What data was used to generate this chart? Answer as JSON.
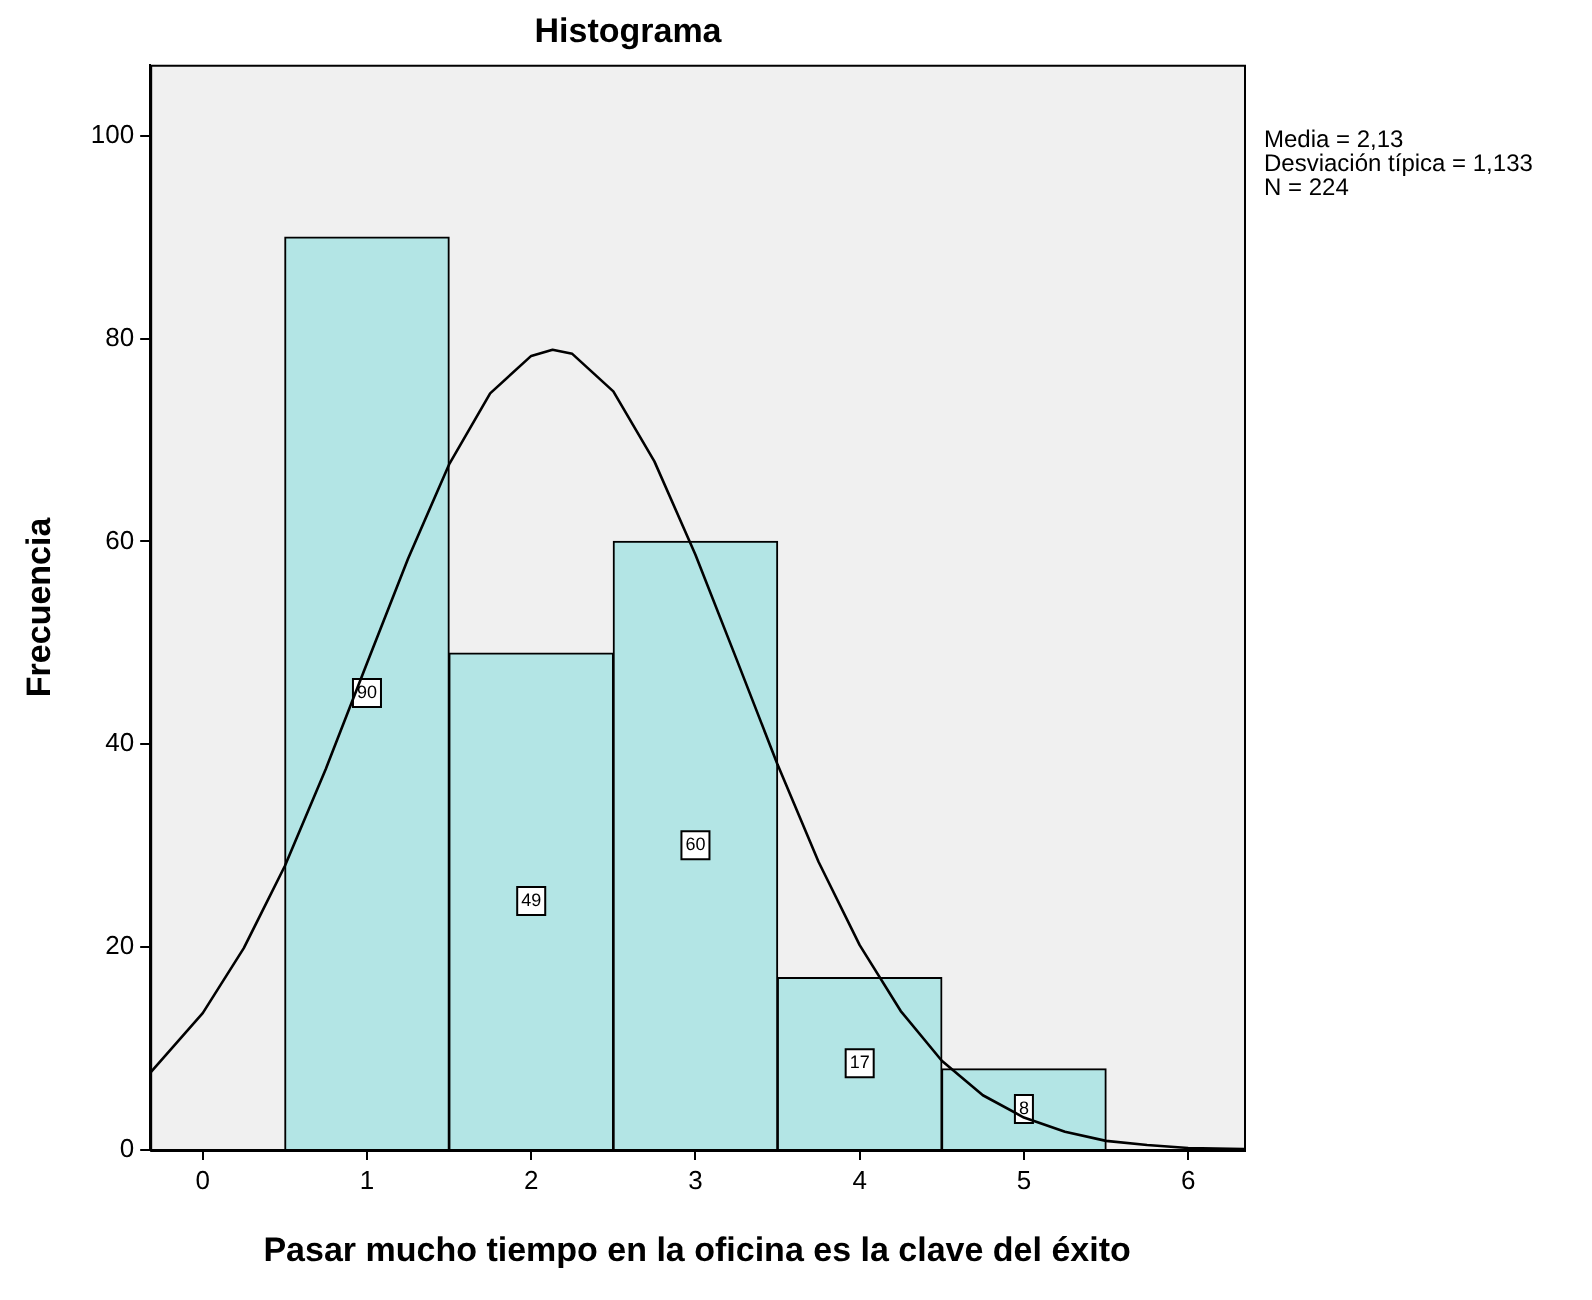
{
  "chart_data": {
    "type": "histogram",
    "title": "Histograma",
    "xlabel": "Pasar mucho tiempo en la oficina es la clave del éxito",
    "ylabel": "Frecuencia",
    "bins": [
      0.5,
      1.5,
      2.5,
      3.5,
      4.5,
      5.5
    ],
    "values": [
      90,
      49,
      60,
      17,
      8
    ],
    "color": "#b3e5e5",
    "value_labels": [
      "90",
      "49",
      "60",
      "17",
      "8"
    ],
    "series": [
      {
        "type": "line",
        "color": "#000000",
        "x": [
          -0.32,
          0,
          0.25,
          0.5,
          0.75,
          1,
          1.25,
          1.5,
          1.75,
          2,
          2.13,
          2.25,
          2.5,
          2.75,
          3,
          3.25,
          3.5,
          3.75,
          4,
          4.25,
          4.5,
          4.75,
          5,
          5.25,
          5.5,
          5.75,
          6,
          6.34
        ],
        "values": [
          7.6,
          13.5,
          19.9,
          28.0,
          37.6,
          48.0,
          58.3,
          67.6,
          74.6,
          78.3,
          78.9,
          78.5,
          74.8,
          67.9,
          58.7,
          48.4,
          38.0,
          28.4,
          20.2,
          13.7,
          8.8,
          5.4,
          3.2,
          1.8,
          0.9,
          0.5,
          0.2,
          0.1
        ]
      }
    ],
    "xlim": [
      -0.32,
      6.34
    ],
    "ylim": [
      0,
      107
    ],
    "xticks": [
      0,
      1,
      2,
      3,
      4,
      5,
      6
    ],
    "yticks": [
      0,
      20,
      40,
      60,
      80,
      100
    ],
    "grid": false,
    "legend": false,
    "annotations": [
      "Media = 2,13",
      "Desviación típica = 1,133",
      "N = 224"
    ]
  }
}
